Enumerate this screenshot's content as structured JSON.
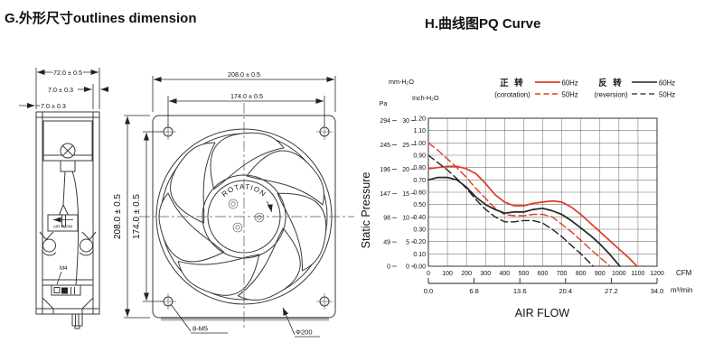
{
  "page": {
    "title_left": "G.外形尺寸outlines dimension",
    "title_right": "H.曲线图PQ Curve"
  },
  "drawing": {
    "side_view": {
      "dim_depth": "72.0 ± 0.5",
      "dim_flange_a": "7.0 ± 0.3",
      "dim_flange_b": "7.0 ± 0.3",
      "air_flow_label": "AIR FLOW",
      "terminal_label": "M4"
    },
    "front_view": {
      "dim_width_top": "208.0 ± 0.5",
      "dim_hole_pitch_top": "174.0 ± 0.5",
      "dim_height_left": "208.0 ± 0.5",
      "dim_hole_pitch_left": "174.0 ± 0.5",
      "rotation_label": "ROTATION",
      "mounting_holes_label": "8-M5",
      "impeller_dia_label": "Φ200"
    }
  },
  "chart_data": {
    "type": "line",
    "title": "PQ Curve",
    "xlabel": "AIR FLOW",
    "ylabel": "Static Pressure",
    "grid": true,
    "x_axes": [
      {
        "unit": "CFM",
        "ticks": [
          0,
          100,
          200,
          300,
          400,
          500,
          600,
          700,
          800,
          900,
          1000,
          1100,
          1200
        ],
        "range": [
          0,
          1200
        ]
      },
      {
        "unit": "m³/min",
        "ticks": [
          "0.0",
          "6.8",
          "13.6",
          "20.4",
          "27.2",
          "34.0"
        ],
        "range": [
          0,
          34
        ]
      }
    ],
    "y_axes": [
      {
        "unit": "Pa",
        "ticks": [
          294,
          245,
          196,
          147,
          98,
          49,
          0
        ],
        "range": [
          0,
          294
        ]
      },
      {
        "unit": "mm-H₂O",
        "ticks": [
          30,
          25,
          20,
          15,
          10,
          5,
          0
        ],
        "range": [
          0,
          30
        ]
      },
      {
        "unit": "Inch-H₂O",
        "ticks": [
          "1.20",
          "1.10",
          "1.00",
          "0.90",
          "0.80",
          "0.70",
          "0.60",
          "0.50",
          "0.40",
          "0.30",
          "0.20",
          "0.10",
          "0.00"
        ],
        "range": [
          0,
          1.2
        ]
      }
    ],
    "legend": {
      "groups": [
        {
          "label": "正 转",
          "sub": "(corotation)",
          "color": "#e23a24",
          "entries": [
            {
              "label": "60Hz",
              "style": "solid"
            },
            {
              "label": "50Hz",
              "style": "dashed"
            }
          ]
        },
        {
          "label": "反 转",
          "sub": "(reversion)",
          "color": "#232323",
          "entries": [
            {
              "label": "60Hz",
              "style": "solid"
            },
            {
              "label": "50Hz",
              "style": "dashed"
            }
          ]
        }
      ]
    },
    "series": [
      {
        "name": "corotation 60Hz",
        "color": "#e23a24",
        "style": "solid",
        "y_unit": "Inch-H₂O",
        "x": [
          0,
          50,
          100,
          150,
          200,
          250,
          300,
          350,
          400,
          450,
          500,
          550,
          600,
          650,
          700,
          750,
          800,
          850,
          900,
          950,
          1000,
          1050,
          1095
        ],
        "y": [
          0.79,
          0.8,
          0.81,
          0.81,
          0.79,
          0.75,
          0.67,
          0.58,
          0.52,
          0.49,
          0.49,
          0.51,
          0.52,
          0.53,
          0.52,
          0.48,
          0.42,
          0.35,
          0.28,
          0.21,
          0.14,
          0.07,
          0.0
        ]
      },
      {
        "name": "corotation 50Hz",
        "color": "#e23a24",
        "style": "dashed",
        "y_unit": "Inch-H₂O",
        "x": [
          0,
          50,
          100,
          150,
          200,
          250,
          300,
          350,
          400,
          450,
          500,
          550,
          600,
          650,
          700,
          750,
          800,
          850,
          900,
          955
        ],
        "y": [
          1.0,
          0.94,
          0.87,
          0.8,
          0.72,
          0.63,
          0.55,
          0.47,
          0.42,
          0.41,
          0.41,
          0.42,
          0.42,
          0.4,
          0.34,
          0.28,
          0.21,
          0.14,
          0.07,
          0.0
        ]
      },
      {
        "name": "reversion 60Hz",
        "color": "#232323",
        "style": "solid",
        "y_unit": "Inch-H₂O",
        "x": [
          0,
          50,
          100,
          150,
          200,
          250,
          300,
          350,
          400,
          450,
          500,
          550,
          600,
          650,
          700,
          750,
          800,
          850,
          900,
          950,
          1005
        ],
        "y": [
          0.7,
          0.72,
          0.72,
          0.7,
          0.64,
          0.56,
          0.5,
          0.46,
          0.43,
          0.44,
          0.44,
          0.46,
          0.47,
          0.45,
          0.42,
          0.37,
          0.31,
          0.25,
          0.18,
          0.1,
          0.0
        ]
      },
      {
        "name": "reversion 50Hz",
        "color": "#232323",
        "style": "dashed",
        "y_unit": "Inch-H₂O",
        "x": [
          0,
          50,
          100,
          150,
          200,
          250,
          300,
          350,
          400,
          450,
          500,
          550,
          600,
          650,
          700,
          750,
          800,
          865
        ],
        "y": [
          0.9,
          0.84,
          0.78,
          0.71,
          0.63,
          0.54,
          0.46,
          0.4,
          0.36,
          0.36,
          0.37,
          0.37,
          0.35,
          0.3,
          0.24,
          0.17,
          0.1,
          0.0
        ]
      }
    ]
  }
}
